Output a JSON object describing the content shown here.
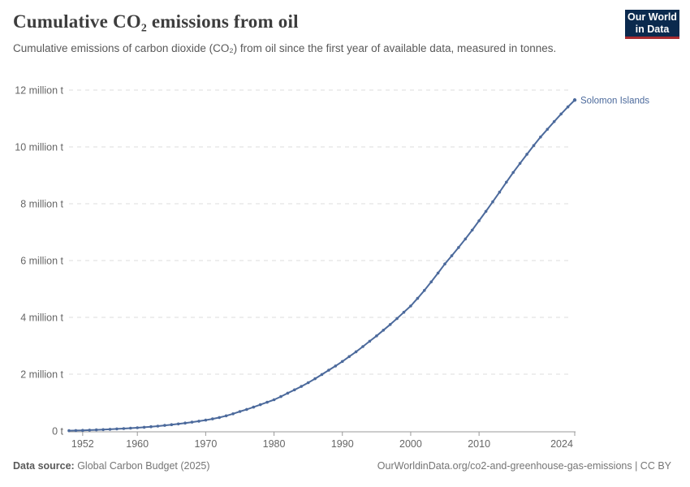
{
  "header": {
    "title": "Cumulative CO₂ emissions from oil",
    "subtitle": "Cumulative emissions of carbon dioxide (CO₂) from oil since the first year of available data, measured in tonnes.",
    "logo": {
      "line1": "Our World",
      "line2": "in Data"
    }
  },
  "footer": {
    "source_label": "Data source:",
    "source_value": " Global Carbon Budget (2025)",
    "attribution": "OurWorldinData.org/co2-and-greenhouse-gas-emissions | CC BY"
  },
  "colors": {
    "series_blue": "#4C6A9C",
    "gridline": "#dcdcdc",
    "axis": "#999999",
    "tick_label": "#666666",
    "logo_navy": "#0b2a4e",
    "logo_red": "#a72b2f",
    "background": "#ffffff"
  },
  "chart_data": {
    "type": "line",
    "title": "Cumulative CO₂ emissions from oil",
    "subtitle": "Cumulative emissions of carbon dioxide (CO₂) from oil since the first year of available data, measured in tonnes.",
    "xlabel": "",
    "ylabel": "",
    "unit": "million t",
    "grid": "horizontal dashed",
    "legend_position": "end-of-line label",
    "markers": true,
    "xlim": [
      1950,
      2024
    ],
    "ylim": [
      0,
      12
    ],
    "x_ticks": [
      1952,
      1960,
      1970,
      1980,
      1990,
      2000,
      2010,
      2024
    ],
    "y_ticks": [
      0,
      2,
      4,
      6,
      8,
      10,
      12
    ],
    "y_tick_labels": [
      "0 t",
      "2 million t",
      "4 million t",
      "6 million t",
      "8 million t",
      "10 million t",
      "12 million t"
    ],
    "series": [
      {
        "name": "Solomon Islands",
        "color": "#4C6A9C",
        "years": [
          1950,
          1951,
          1952,
          1953,
          1954,
          1955,
          1956,
          1957,
          1958,
          1959,
          1960,
          1961,
          1962,
          1963,
          1964,
          1965,
          1966,
          1967,
          1968,
          1969,
          1970,
          1971,
          1972,
          1973,
          1974,
          1975,
          1976,
          1977,
          1978,
          1979,
          1980,
          1981,
          1982,
          1983,
          1984,
          1985,
          1986,
          1987,
          1988,
          1989,
          1990,
          1991,
          1992,
          1993,
          1994,
          1995,
          1996,
          1997,
          1998,
          1999,
          2000,
          2001,
          2002,
          2003,
          2004,
          2005,
          2006,
          2007,
          2008,
          2009,
          2010,
          2011,
          2012,
          2013,
          2014,
          2015,
          2016,
          2017,
          2018,
          2019,
          2020,
          2021,
          2022,
          2023,
          2024
        ],
        "values": [
          0.01,
          0.016,
          0.023,
          0.031,
          0.04,
          0.05,
          0.061,
          0.073,
          0.086,
          0.1,
          0.115,
          0.132,
          0.151,
          0.172,
          0.196,
          0.222,
          0.25,
          0.28,
          0.312,
          0.346,
          0.383,
          0.425,
          0.475,
          0.535,
          0.605,
          0.685,
          0.76,
          0.84,
          0.925,
          1.01,
          1.1,
          1.21,
          1.33,
          1.45,
          1.57,
          1.7,
          1.84,
          1.99,
          2.14,
          2.29,
          2.45,
          2.62,
          2.79,
          2.97,
          3.16,
          3.35,
          3.55,
          3.75,
          3.96,
          4.18,
          4.4,
          4.67,
          4.95,
          5.25,
          5.56,
          5.88,
          6.17,
          6.46,
          6.76,
          7.07,
          7.4,
          7.73,
          8.07,
          8.41,
          8.76,
          9.1,
          9.42,
          9.74,
          10.05,
          10.35,
          10.62,
          10.89,
          11.16,
          11.41,
          11.65
        ]
      }
    ]
  }
}
